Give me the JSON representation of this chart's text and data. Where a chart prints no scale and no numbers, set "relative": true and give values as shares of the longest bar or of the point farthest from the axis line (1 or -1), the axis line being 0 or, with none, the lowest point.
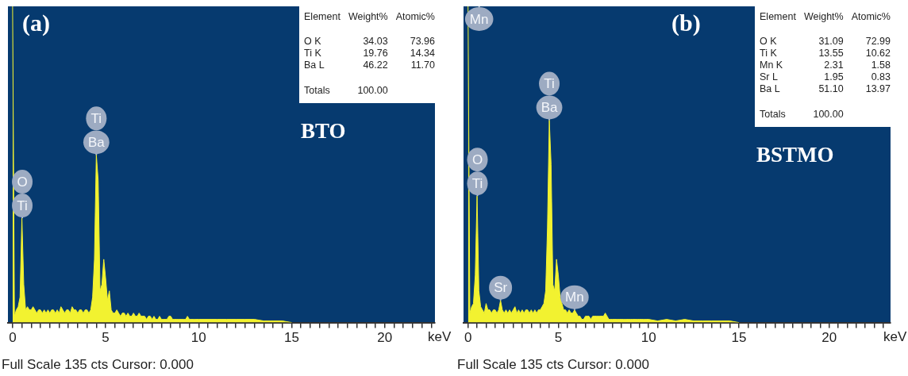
{
  "chart_data": [
    {
      "type": "area",
      "title": "(a)",
      "xlabel": "keV",
      "relative": true,
      "xlim": [
        -0.25,
        22.7
      ],
      "xticks": [
        0,
        {
          "value": 0.5,
          "label": null
        },
        {
          "value": 1,
          "label": null
        },
        {
          "value": 1.5,
          "label": null
        },
        {
          "value": 2,
          "label": null
        },
        {
          "value": 2.5,
          "label": null
        },
        {
          "value": 3,
          "label": null
        },
        {
          "value": 3.5,
          "label": null
        },
        {
          "value": 4,
          "label": null
        },
        {
          "value": 4.5,
          "label": null
        },
        5,
        {
          "value": 5.5,
          "label": null
        },
        {
          "value": 6,
          "label": null
        },
        {
          "value": 6.5,
          "label": null
        },
        {
          "value": 7,
          "label": null
        },
        {
          "value": 7.5,
          "label": null
        },
        {
          "value": 8,
          "label": null
        },
        {
          "value": 8.5,
          "label": null
        },
        {
          "value": 9,
          "label": null
        },
        {
          "value": 9.5,
          "label": null
        },
        10,
        {
          "value": 10.5,
          "label": null
        },
        {
          "value": 11,
          "label": null
        },
        {
          "value": 11.5,
          "label": null
        },
        {
          "value": 12,
          "label": null
        },
        {
          "value": 12.5,
          "label": null
        },
        {
          "value": 13,
          "label": null
        },
        {
          "value": 13.5,
          "label": null
        },
        {
          "value": 14,
          "label": null
        },
        {
          "value": 14.5,
          "label": null
        },
        15,
        {
          "value": 15.5,
          "label": null
        },
        {
          "value": 16,
          "label": null
        },
        {
          "value": 16.5,
          "label": null
        },
        {
          "value": 17,
          "label": null
        },
        {
          "value": 17.5,
          "label": null
        },
        {
          "value": 18,
          "label": null
        },
        {
          "value": 18.5,
          "label": null
        },
        {
          "value": 19,
          "label": null
        },
        {
          "value": 19.5,
          "label": null
        },
        20,
        {
          "value": 20.5,
          "label": null
        },
        {
          "value": 21,
          "label": null
        },
        {
          "value": 21.5,
          "label": null
        },
        {
          "value": 22,
          "label": null
        },
        {
          "value": 22.5,
          "label": null
        }
      ],
      "series": [
        {
          "color": "#f2f230",
          "x": [
            0,
            0.1,
            0.2,
            0.3,
            0.4,
            0.5,
            0.6,
            0.7,
            0.8,
            0.9,
            1,
            1.1,
            1.2,
            1.3,
            1.4,
            1.5,
            1.6,
            1.7,
            1.8,
            1.9,
            2,
            2.1,
            2.2,
            2.3,
            2.4,
            2.5,
            2.6,
            2.7,
            2.8,
            2.9,
            3,
            3.1,
            3.2,
            3.3,
            3.4,
            3.5,
            3.6,
            3.7,
            3.8,
            3.9,
            4,
            4.1,
            4.2,
            4.3,
            4.4,
            4.5,
            4.6,
            4.7,
            4.8,
            4.9,
            5,
            5.1,
            5.2,
            5.3,
            5.4,
            5.5,
            5.6,
            5.7,
            5.8,
            5.9,
            6,
            6.1,
            6.2,
            6.3,
            6.4,
            6.5,
            6.6,
            6.7,
            6.8,
            6.9,
            7,
            7.1,
            7.2,
            7.3,
            7.4,
            7.5,
            7.6,
            7.7,
            7.8,
            7.9,
            8,
            8.1,
            8.2,
            8.3,
            8.4,
            8.5,
            8.6,
            8.7,
            8.8,
            8.9,
            9,
            9.1,
            9.2,
            9.3,
            9.4,
            9.5,
            9.6,
            9.7,
            9.8,
            9.9,
            10,
            10.5,
            11,
            11.5,
            12,
            12.5,
            13,
            13.5,
            14,
            14.5,
            15
          ],
          "values": [
            1,
            0.02,
            0.04,
            0.05,
            0.08,
            0.33,
            0.12,
            0.04,
            0.05,
            0.04,
            0.04,
            0.05,
            0.04,
            0.03,
            0.04,
            0.04,
            0.03,
            0.04,
            0.03,
            0.04,
            0.03,
            0.04,
            0.04,
            0.03,
            0.04,
            0.03,
            0.05,
            0.04,
            0.03,
            0.04,
            0.04,
            0.03,
            0.05,
            0.04,
            0.04,
            0.03,
            0.04,
            0.04,
            0.03,
            0.04,
            0.04,
            0.03,
            0.04,
            0.08,
            0.2,
            0.53,
            0.45,
            0.1,
            0.12,
            0.2,
            0.14,
            0.07,
            0.1,
            0.04,
            0.03,
            0.03,
            0.04,
            0.03,
            0.02,
            0.03,
            0.03,
            0.02,
            0.03,
            0.02,
            0.02,
            0.03,
            0.02,
            0.02,
            0.03,
            0.02,
            0.02,
            0.02,
            0.01,
            0.02,
            0.02,
            0.01,
            0.02,
            0.01,
            0.01,
            0.02,
            0.01,
            0.01,
            0.01,
            0.01,
            0.02,
            0.02,
            0.01,
            0.01,
            0.01,
            0.01,
            0.01,
            0.01,
            0.01,
            0.01,
            0.02,
            0.01,
            0.01,
            0.01,
            0.01,
            0.01,
            0.01,
            0.01,
            0.01,
            0.01,
            0.01,
            0.01,
            0.01,
            0.005,
            0.005,
            0.005,
            0
          ]
        }
      ],
      "annotations": [
        {
          "text": "Ti",
          "x": 0.52,
          "y": 0.33
        },
        {
          "text": "O",
          "x": 0.52,
          "y": 0.33
        },
        {
          "text": "Ba",
          "x": 4.5,
          "y": 0.53
        },
        {
          "text": "Ti",
          "x": 4.5,
          "y": 0.53
        },
        "Element\tWeight%\tAtomic%",
        "O K\t34.03\t73.96",
        "Ti K\t19.76\t14.34",
        "Ba L\t46.22\t11.70",
        "Totals\t100.00",
        "BTO",
        "Full Scale 135 cts Cursor: 0.000"
      ]
    },
    {
      "type": "area",
      "title": "(b)",
      "xlabel": "keV",
      "relative": true,
      "xlim": [
        -0.25,
        23.4
      ],
      "xticks": [
        0,
        {
          "value": 0.5,
          "label": null
        },
        {
          "value": 1,
          "label": null
        },
        {
          "value": 1.5,
          "label": null
        },
        {
          "value": 2,
          "label": null
        },
        {
          "value": 2.5,
          "label": null
        },
        {
          "value": 3,
          "label": null
        },
        {
          "value": 3.5,
          "label": null
        },
        {
          "value": 4,
          "label": null
        },
        {
          "value": 4.5,
          "label": null
        },
        5,
        {
          "value": 5.5,
          "label": null
        },
        {
          "value": 6,
          "label": null
        },
        {
          "value": 6.5,
          "label": null
        },
        {
          "value": 7,
          "label": null
        },
        {
          "value": 7.5,
          "label": null
        },
        {
          "value": 8,
          "label": null
        },
        {
          "value": 8.5,
          "label": null
        },
        {
          "value": 9,
          "label": null
        },
        {
          "value": 9.5,
          "label": null
        },
        10,
        {
          "value": 10.5,
          "label": null
        },
        {
          "value": 11,
          "label": null
        },
        {
          "value": 11.5,
          "label": null
        },
        {
          "value": 12,
          "label": null
        },
        {
          "value": 12.5,
          "label": null
        },
        {
          "value": 13,
          "label": null
        },
        {
          "value": 13.5,
          "label": null
        },
        {
          "value": 14,
          "label": null
        },
        {
          "value": 14.5,
          "label": null
        },
        15,
        {
          "value": 15.5,
          "label": null
        },
        {
          "value": 16,
          "label": null
        },
        {
          "value": 16.5,
          "label": null
        },
        {
          "value": 17,
          "label": null
        },
        {
          "value": 17.5,
          "label": null
        },
        {
          "value": 18,
          "label": null
        },
        {
          "value": 18.5,
          "label": null
        },
        {
          "value": 19,
          "label": null
        },
        {
          "value": 19.5,
          "label": null
        },
        20,
        {
          "value": 20.5,
          "label": null
        },
        {
          "value": 21,
          "label": null
        },
        {
          "value": 21.5,
          "label": null
        },
        {
          "value": 22,
          "label": null
        },
        {
          "value": 22.5,
          "label": null
        },
        {
          "value": 23,
          "label": null
        }
      ],
      "series": [
        {
          "color": "#f2f230",
          "x": [
            0,
            0.1,
            0.2,
            0.3,
            0.4,
            0.5,
            0.6,
            0.7,
            0.8,
            0.9,
            1,
            1.1,
            1.2,
            1.3,
            1.4,
            1.5,
            1.6,
            1.7,
            1.8,
            1.9,
            2,
            2.1,
            2.2,
            2.3,
            2.4,
            2.5,
            2.6,
            2.7,
            2.8,
            2.9,
            3,
            3.1,
            3.2,
            3.3,
            3.4,
            3.5,
            3.6,
            3.7,
            3.8,
            3.9,
            4,
            4.1,
            4.2,
            4.3,
            4.4,
            4.5,
            4.6,
            4.7,
            4.8,
            4.9,
            5,
            5.1,
            5.2,
            5.3,
            5.4,
            5.5,
            5.6,
            5.7,
            5.8,
            5.9,
            6,
            6.1,
            6.2,
            6.3,
            6.4,
            6.5,
            6.6,
            6.7,
            6.8,
            6.9,
            7,
            7.1,
            7.2,
            7.3,
            7.4,
            7.5,
            7.6,
            7.7,
            7.8,
            7.9,
            8,
            8.1,
            8.2,
            8.3,
            8.4,
            8.5,
            8.6,
            8.7,
            8.8,
            8.9,
            9,
            9.1,
            9.2,
            9.3,
            9.4,
            9.5,
            9.6,
            9.7,
            9.8,
            9.9,
            10,
            10.5,
            11,
            11.5,
            12,
            12.5,
            13,
            13.5,
            14,
            14.5,
            15
          ],
          "values": [
            1,
            0.03,
            0.05,
            0.06,
            0.15,
            0.4,
            0.1,
            0.05,
            0.04,
            0.03,
            0.06,
            0.04,
            0.04,
            0.03,
            0.04,
            0.04,
            0.03,
            0.04,
            0.07,
            0.04,
            0.03,
            0.04,
            0.03,
            0.04,
            0.03,
            0.04,
            0.05,
            0.03,
            0.04,
            0.03,
            0.04,
            0.03,
            0.04,
            0.04,
            0.03,
            0.04,
            0.03,
            0.04,
            0.03,
            0.04,
            0.04,
            0.05,
            0.06,
            0.1,
            0.3,
            0.64,
            0.5,
            0.12,
            0.1,
            0.2,
            0.15,
            0.08,
            0.06,
            0.04,
            0.04,
            0.03,
            0.04,
            0.03,
            0.03,
            0.04,
            0.03,
            0.02,
            0.02,
            0.01,
            0.01,
            0.02,
            0.02,
            0.02,
            0.01,
            0.02,
            0.02,
            0.02,
            0.02,
            0.02,
            0.02,
            0.02,
            0.03,
            0.02,
            0.01,
            0.01,
            0.01,
            0.01,
            0.01,
            0.01,
            0.01,
            0.01,
            0.01,
            0.01,
            0.01,
            0.01,
            0.01,
            0.01,
            0.01,
            0.01,
            0.01,
            0.01,
            0.01,
            0.01,
            0.01,
            0.01,
            0.01,
            0.005,
            0.01,
            0.005,
            0.01,
            0.005,
            0.005,
            0.005,
            0.005,
            0.005,
            0
          ]
        }
      ],
      "annotations": [
        {
          "text": "Mn",
          "x": 0,
          "y": 1
        },
        {
          "text": "Ti",
          "x": 0.52,
          "y": 0.4
        },
        {
          "text": "O",
          "x": 0.52,
          "y": 0.4
        },
        {
          "text": "Ba",
          "x": 4.5,
          "y": 0.64
        },
        {
          "text": "Ti",
          "x": 4.5,
          "y": 0.64
        },
        {
          "text": "Sr",
          "x": 1.8,
          "y": 0.07
        },
        {
          "text": "Mn",
          "x": 5.9,
          "y": 0.04
        },
        "Element\tWeight%\tAtomic%",
        "O K\t31.09\t72.99",
        "Ti K\t13.55\t10.62",
        "Mn K\t2.31\t1.58",
        "Sr L\t1.95\t0.83",
        "Ba L\t51.10\t13.97",
        "Totals\t100.00",
        "BSTMO",
        "Full Scale 135 cts Cursor: 0.000"
      ]
    }
  ]
}
